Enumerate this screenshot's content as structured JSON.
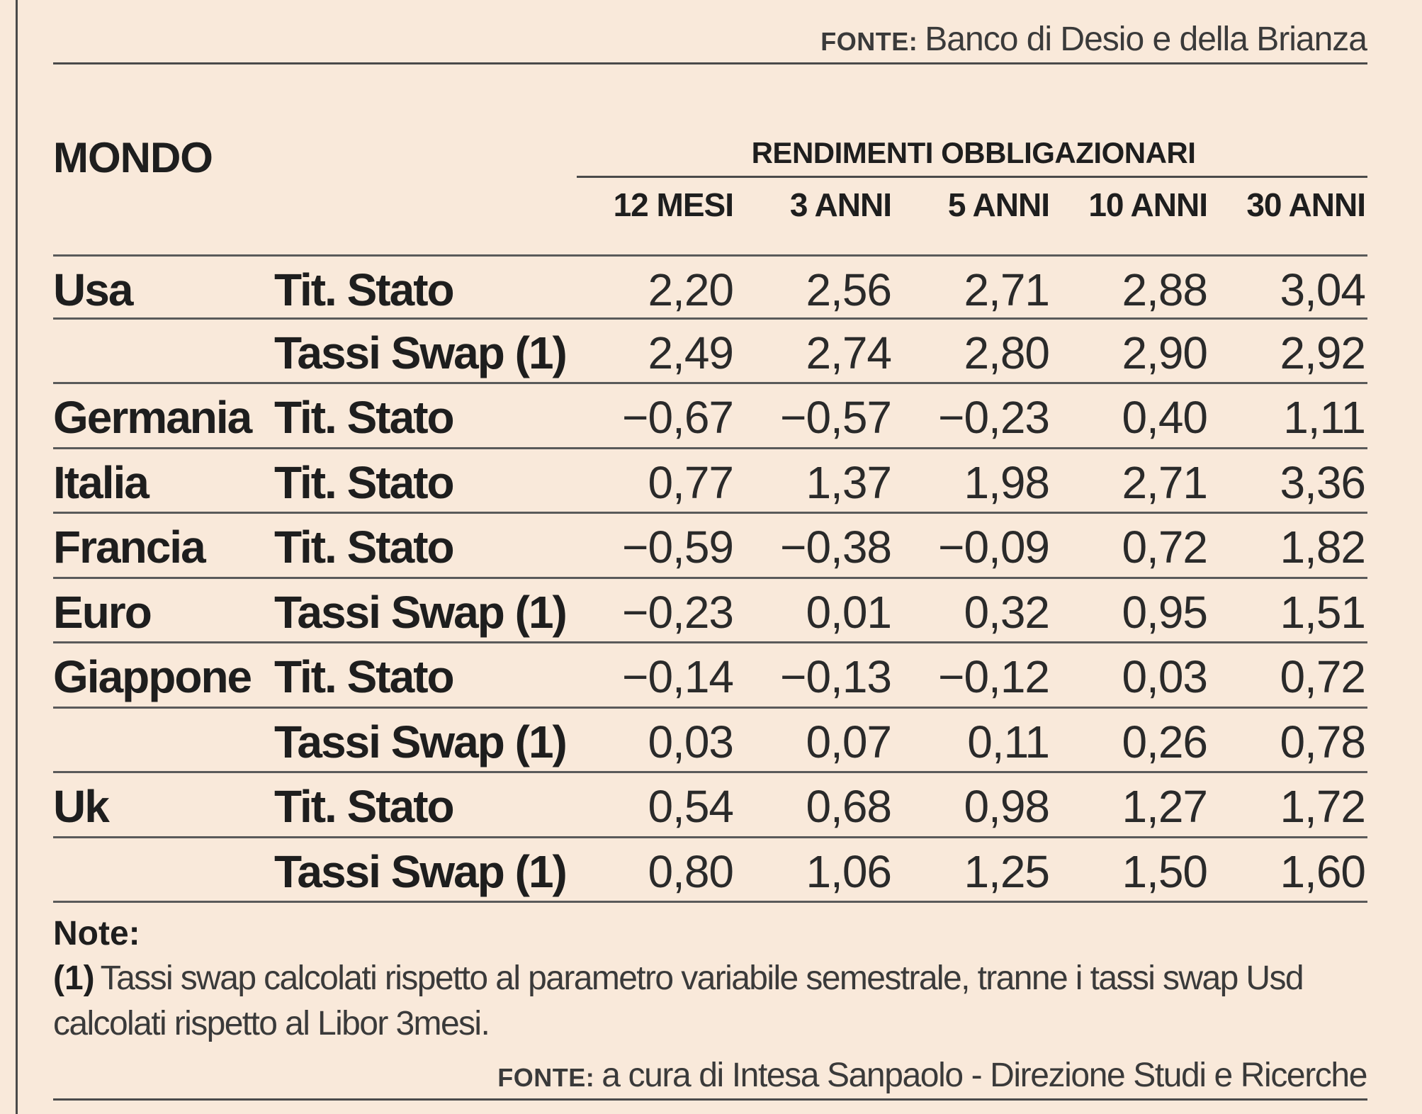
{
  "top_source": {
    "label": "FONTE:",
    "text": "Banco di Desio e della Brianza"
  },
  "title": "MONDO",
  "group_header": "RENDIMENTI OBBLIGAZIONARI",
  "columns": [
    "12 MESI",
    "3 ANNI",
    "5 ANNI",
    "10 ANNI",
    "30 ANNI"
  ],
  "rows": [
    {
      "country": "Usa",
      "instrument": "Tit. Stato",
      "values": [
        "2,20",
        "2,56",
        "2,71",
        "2,88",
        "3,04"
      ]
    },
    {
      "country": "",
      "instrument": "Tassi Swap (1)",
      "values": [
        "2,49",
        "2,74",
        "2,80",
        "2,90",
        "2,92"
      ]
    },
    {
      "country": "Germania",
      "instrument": "Tit. Stato",
      "values": [
        "−0,67",
        "−0,57",
        "−0,23",
        "0,40",
        "1,11"
      ]
    },
    {
      "country": "Italia",
      "instrument": "Tit. Stato",
      "values": [
        "0,77",
        "1,37",
        "1,98",
        "2,71",
        "3,36"
      ]
    },
    {
      "country": "Francia",
      "instrument": "Tit. Stato",
      "values": [
        "−0,59",
        "−0,38",
        "−0,09",
        "0,72",
        "1,82"
      ]
    },
    {
      "country": "Euro",
      "instrument": "Tassi Swap (1)",
      "values": [
        "−0,23",
        "0,01",
        "0,32",
        "0,95",
        "1,51"
      ]
    },
    {
      "country": "Giappone",
      "instrument": "Tit. Stato",
      "values": [
        "−0,14",
        "−0,13",
        "−0,12",
        "0,03",
        "0,72"
      ]
    },
    {
      "country": "",
      "instrument": "Tassi Swap (1)",
      "values": [
        "0,03",
        "0,07",
        "0,11",
        "0,26",
        "0,78"
      ]
    },
    {
      "country": "Uk",
      "instrument": "Tit. Stato",
      "values": [
        "0,54",
        "0,68",
        "0,98",
        "1,27",
        "1,72"
      ]
    },
    {
      "country": "",
      "instrument": "Tassi Swap (1)",
      "values": [
        "0,80",
        "1,06",
        "1,25",
        "1,50",
        "1,60"
      ]
    }
  ],
  "notes": {
    "title": "Note:",
    "marker": "(1)",
    "text": "Tassi swap calcolati rispetto al parametro variabile semestrale, tranne i tassi swap Usd calcolati rispetto al Libor 3mesi."
  },
  "bottom_source": {
    "label": "FONTE:",
    "text": "a cura di Intesa Sanpaolo - Direzione Studi e Ricerche"
  }
}
